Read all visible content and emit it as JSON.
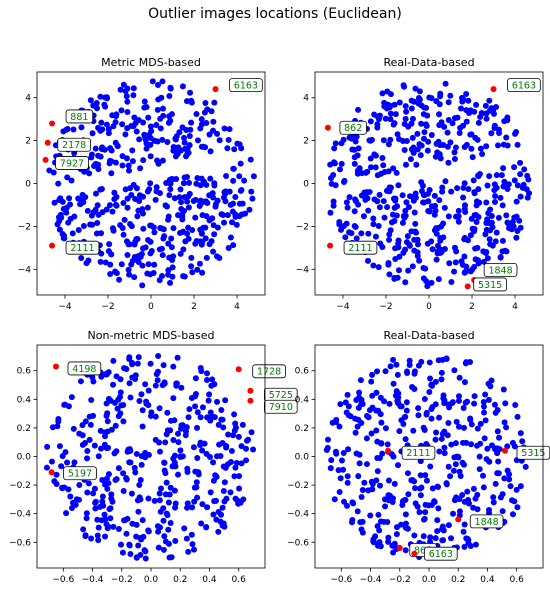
{
  "title": "Outlier images locations (Euclidean)",
  "colors": {
    "inlier": "#0000ff",
    "outlier": "#ff0000",
    "label_text": "#008000"
  },
  "chart_data": [
    {
      "type": "scatter",
      "title": "Metric MDS-based",
      "xlim": [
        -5.3,
        5.3
      ],
      "ylim": [
        -5.2,
        5.2
      ],
      "xticks": [
        -4,
        -2,
        0,
        2,
        4
      ],
      "yticks": [
        -4,
        -2,
        0,
        2,
        4
      ],
      "xtick_labels": [
        "−4",
        "−2",
        "0",
        "2",
        "4"
      ],
      "ytick_labels": [
        "−4",
        "−2",
        "0",
        "2",
        "4"
      ],
      "inlier_shape": "disk",
      "inlier_count_estimate": 520,
      "outliers": [
        {
          "label": "6163",
          "x": 3.0,
          "y": 4.4
        },
        {
          "label": "881",
          "x": -4.6,
          "y": 2.8
        },
        {
          "label": "2178",
          "x": -4.8,
          "y": 1.9
        },
        {
          "label": "7927",
          "x": -4.9,
          "y": 1.1
        },
        {
          "label": "2111",
          "x": -4.6,
          "y": -2.9
        }
      ]
    },
    {
      "type": "scatter",
      "title": "Real-Data-based",
      "xlim": [
        -5.3,
        5.3
      ],
      "ylim": [
        -5.2,
        5.2
      ],
      "xticks": [
        -4,
        -2,
        0,
        2,
        4
      ],
      "yticks": [
        -4,
        -2,
        0,
        2,
        4
      ],
      "xtick_labels": [
        "−4",
        "−2",
        "0",
        "2",
        "4"
      ],
      "ytick_labels": [
        "−4",
        "−2",
        "0",
        "2",
        "4"
      ],
      "inlier_shape": "disk",
      "inlier_count_estimate": 520,
      "outliers": [
        {
          "label": "6163",
          "x": 3.0,
          "y": 4.4
        },
        {
          "label": "862",
          "x": -4.7,
          "y": 2.6
        },
        {
          "label": "2111",
          "x": -4.6,
          "y": -2.9
        },
        {
          "label": "1848",
          "x": 2.1,
          "y": -4.5
        },
        {
          "label": "5315",
          "x": 1.8,
          "y": -4.8
        }
      ]
    },
    {
      "type": "scatter",
      "title": "Non-metric MDS-based",
      "xlim": [
        -0.78,
        0.78
      ],
      "ylim": [
        -0.78,
        0.78
      ],
      "xticks": [
        -0.8,
        -0.6,
        -0.4,
        -0.2,
        0.0,
        0.2,
        0.4,
        0.6
      ],
      "yticks": [
        -0.8,
        -0.6,
        -0.4,
        -0.2,
        0.0,
        0.2,
        0.4,
        0.6,
        0.8
      ],
      "xtick_labels": [
        "−0.8",
        "−0.6",
        "−0.4",
        "−0.2",
        "0.0",
        "0.2",
        "0.4",
        "0.6"
      ],
      "ytick_labels": [
        "−0.8",
        "−0.6",
        "−0.4",
        "−0.2",
        "0.0",
        "0.2",
        "0.4",
        "0.6",
        "0.8"
      ],
      "inlier_shape": "disk",
      "inlier_count_estimate": 420,
      "outliers": [
        {
          "label": "4198",
          "x": -0.65,
          "y": 0.63
        },
        {
          "label": "1728",
          "x": 0.6,
          "y": 0.61
        },
        {
          "label": "5725",
          "x": 0.68,
          "y": 0.46
        },
        {
          "label": "7910",
          "x": 0.68,
          "y": 0.39
        },
        {
          "label": "5197",
          "x": -0.68,
          "y": -0.11
        }
      ]
    },
    {
      "type": "scatter",
      "title": "Real-Data-based",
      "xlim": [
        -0.78,
        0.78
      ],
      "ylim": [
        -0.78,
        0.78
      ],
      "xticks": [
        -0.8,
        -0.6,
        -0.4,
        -0.2,
        0.0,
        0.2,
        0.4,
        0.6
      ],
      "yticks": [
        -0.8,
        -0.6,
        -0.4,
        -0.2,
        0.0,
        0.2,
        0.4,
        0.6,
        0.8
      ],
      "xtick_labels": [
        "−0.8",
        "−0.6",
        "−0.4",
        "−0.2",
        "0.0",
        "0.2",
        "0.4",
        "0.6"
      ],
      "ytick_labels": [
        "−0.8",
        "−0.6",
        "−0.4",
        "−0.2",
        "0.0",
        "0.2",
        "0.4",
        "0.6",
        "0.8"
      ],
      "inlier_shape": "disk",
      "inlier_count_estimate": 420,
      "outliers": [
        {
          "label": "2111",
          "x": -0.28,
          "y": 0.04
        },
        {
          "label": "5315",
          "x": 0.52,
          "y": 0.04
        },
        {
          "label": "1848",
          "x": 0.2,
          "y": -0.44
        },
        {
          "label": "862",
          "x": -0.2,
          "y": -0.64
        },
        {
          "label": "6163",
          "x": -0.1,
          "y": -0.68
        }
      ]
    }
  ]
}
